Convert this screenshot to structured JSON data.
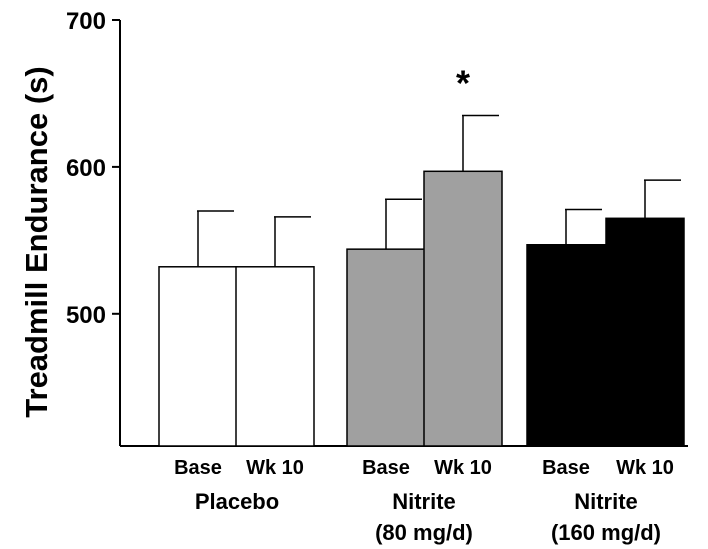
{
  "chart_data": {
    "type": "bar",
    "ylabel": "Treadmill Endurance (s)",
    "xlabel": "",
    "ylim": [
      410,
      700
    ],
    "yticks": [
      500,
      600,
      700
    ],
    "bars": [
      {
        "label": "Base",
        "group": "Placebo",
        "value": 532,
        "error": 38,
        "color": "#ffffff"
      },
      {
        "label": "Wk 10",
        "group": "Placebo",
        "value": 532,
        "error": 34,
        "color": "#ffffff"
      },
      {
        "label": "Base",
        "group": "Nitrite (80 mg/d)",
        "value": 544,
        "error": 34,
        "color": "#a0a0a0"
      },
      {
        "label": "Wk 10",
        "group": "Nitrite (80 mg/d)",
        "value": 597,
        "error": 38,
        "color": "#a0a0a0",
        "annotation": "*"
      },
      {
        "label": "Base",
        "group": "Nitrite (160 mg/d)",
        "value": 547,
        "error": 24,
        "color": "#000000"
      },
      {
        "label": "Wk 10",
        "group": "Nitrite (160 mg/d)",
        "value": 565,
        "error": 26,
        "color": "#000000"
      }
    ],
    "groups": [
      {
        "line1": "Placebo",
        "line2": ""
      },
      {
        "line1": "Nitrite",
        "line2": "(80 mg/d)"
      },
      {
        "line1": "Nitrite",
        "line2": "(160 mg/d)"
      }
    ]
  }
}
